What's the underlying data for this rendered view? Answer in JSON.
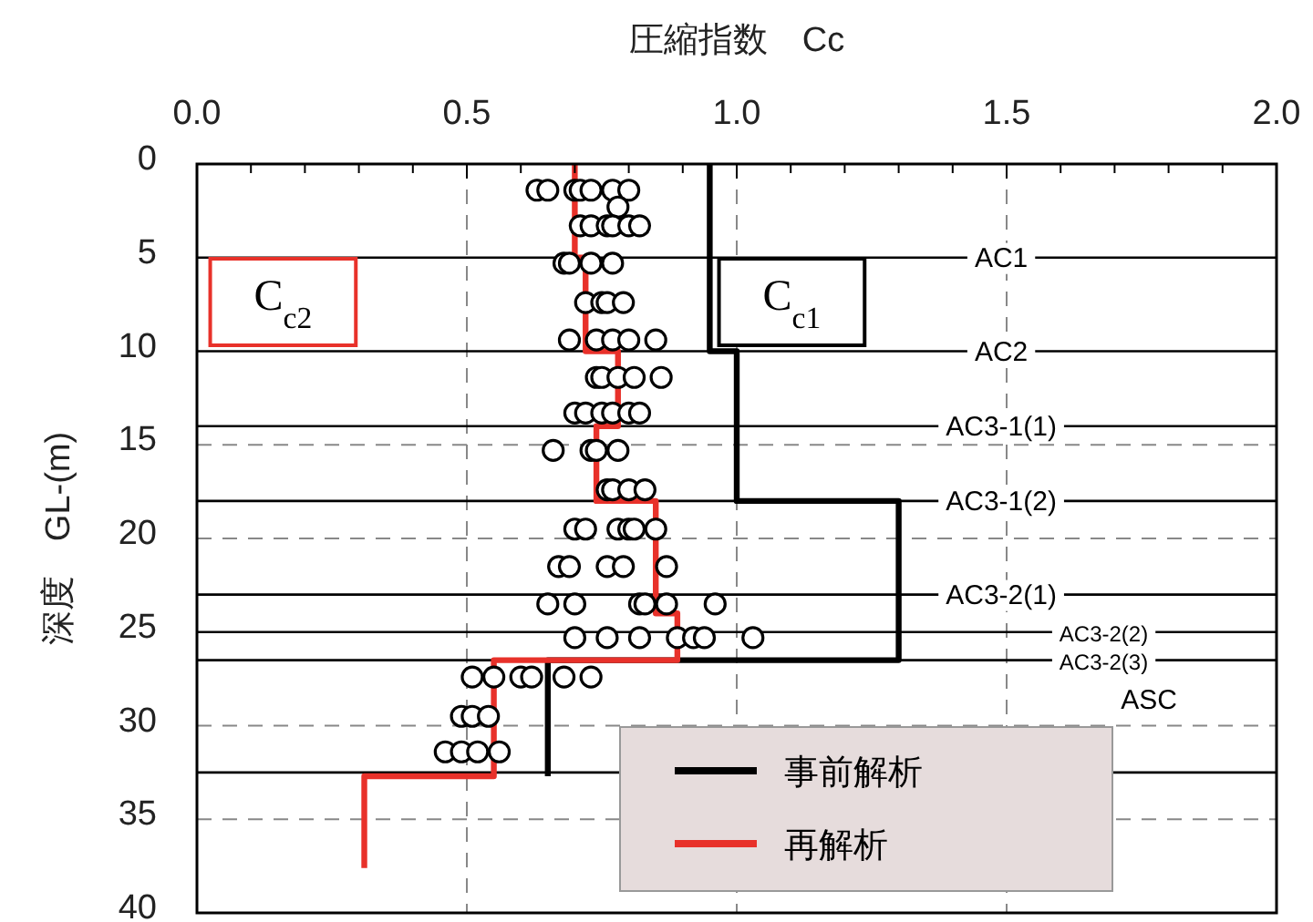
{
  "chart_data": {
    "type": "line",
    "xlabel": "圧縮指数　Cc",
    "ylabel": "深度　GL-(m)",
    "xlim": [
      0,
      2
    ],
    "ylim": [
      40,
      0
    ],
    "xticks": [
      {
        "value": 0,
        "label": "0.0"
      },
      {
        "value": 0.1,
        "label": null
      },
      {
        "value": 0.2,
        "label": null
      },
      {
        "value": 0.3,
        "label": null
      },
      {
        "value": 0.4,
        "label": null
      },
      {
        "value": 0.5,
        "label": "0.5"
      },
      {
        "value": 0.6,
        "label": null
      },
      {
        "value": 0.7,
        "label": null
      },
      {
        "value": 0.8,
        "label": null
      },
      {
        "value": 0.9,
        "label": null
      },
      {
        "value": 1,
        "label": "1.0"
      },
      {
        "value": 1.1,
        "label": null
      },
      {
        "value": 1.2,
        "label": null
      },
      {
        "value": 1.3,
        "label": null
      },
      {
        "value": 1.4,
        "label": null
      },
      {
        "value": 1.5,
        "label": "1.5"
      },
      {
        "value": 1.6,
        "label": null
      },
      {
        "value": 1.7,
        "label": null
      },
      {
        "value": 1.8,
        "label": null
      },
      {
        "value": 1.9,
        "label": null
      },
      {
        "value": 2,
        "label": "2.0"
      }
    ],
    "yticks": [
      0,
      5,
      10,
      15,
      20,
      25,
      30,
      35,
      40
    ],
    "grid": true,
    "legend": "bottom right",
    "series": [
      {
        "name": "事前解析",
        "color": "#000000",
        "x": [
          0.95,
          0.95,
          1.0,
          1.0,
          1.3,
          1.3,
          0.65,
          0.65
        ],
        "values": [
          0,
          10,
          10,
          18,
          18,
          26.5,
          26.5,
          32.7
        ]
      },
      {
        "name": "再解析",
        "color": "#e8312a",
        "x": [
          0.7,
          0.7,
          0.72,
          0.72,
          0.78,
          0.78,
          0.74,
          0.74,
          0.85,
          0.85,
          0.89,
          0.89,
          0.55,
          0.55,
          0.31,
          0.31
        ],
        "values": [
          0,
          5,
          5,
          10,
          10,
          14,
          14,
          18,
          18,
          24,
          24,
          26.5,
          26.5,
          32.7,
          32.7,
          37.6
        ]
      },
      {
        "type": "scatter",
        "color": "#000000",
        "marker": "circle",
        "x": [
          0.63,
          0.65,
          0.7,
          0.71,
          0.73,
          0.77,
          0.8,
          0.78,
          0.71,
          0.73,
          0.76,
          0.77,
          0.8,
          0.82,
          0.68,
          0.69,
          0.73,
          0.77,
          0.72,
          0.75,
          0.76,
          0.79,
          0.69,
          0.74,
          0.77,
          0.8,
          0.85,
          0.74,
          0.75,
          0.78,
          0.81,
          0.86,
          0.7,
          0.72,
          0.75,
          0.77,
          0.8,
          0.82,
          0.66,
          0.73,
          0.74,
          0.78,
          0.76,
          0.77,
          0.8,
          0.83,
          0.7,
          0.72,
          0.78,
          0.8,
          0.81,
          0.85,
          0.67,
          0.69,
          0.76,
          0.79,
          0.87,
          0.65,
          0.7,
          0.82,
          0.83,
          0.87,
          0.96,
          0.7,
          0.76,
          0.82,
          0.89,
          0.92,
          0.94,
          1.03,
          0.51,
          0.55,
          0.6,
          0.62,
          0.68,
          0.73,
          0.49,
          0.51,
          0.54,
          0.46,
          0.49,
          0.52,
          0.56
        ],
        "values": [
          1.4,
          1.4,
          1.4,
          1.4,
          1.4,
          1.4,
          1.4,
          2.3,
          3.3,
          3.3,
          3.3,
          3.3,
          3.3,
          3.3,
          5.3,
          5.3,
          5.3,
          5.3,
          7.4,
          7.4,
          7.4,
          7.4,
          9.4,
          9.4,
          9.4,
          9.4,
          9.4,
          11.4,
          11.4,
          11.4,
          11.4,
          11.4,
          13.3,
          13.3,
          13.3,
          13.3,
          13.3,
          13.3,
          15.3,
          15.3,
          15.3,
          15.3,
          17.4,
          17.4,
          17.4,
          17.4,
          19.5,
          19.5,
          19.5,
          19.5,
          19.5,
          19.5,
          21.5,
          21.5,
          21.5,
          21.5,
          21.5,
          23.5,
          23.5,
          23.5,
          23.5,
          23.5,
          23.5,
          25.3,
          25.3,
          25.3,
          25.3,
          25.3,
          25.3,
          25.3,
          27.4,
          27.4,
          27.4,
          27.4,
          27.4,
          27.4,
          29.5,
          29.5,
          29.5,
          31.4,
          31.4,
          31.4,
          31.4
        ]
      }
    ],
    "ref_lines": [
      {
        "axis": "y",
        "value": 5,
        "label": "AC1"
      },
      {
        "axis": "y",
        "value": 10,
        "label": "AC2"
      },
      {
        "axis": "y",
        "value": 14,
        "label": "AC3-1(1)"
      },
      {
        "axis": "y",
        "value": 18,
        "label": "AC3-1(2)"
      },
      {
        "axis": "y",
        "value": 23,
        "label": "AC3-2(1)"
      },
      {
        "axis": "y",
        "value": 25,
        "label": "AC3-2(2)"
      },
      {
        "axis": "y",
        "value": 26.5,
        "label": "AC3-2(3)"
      },
      {
        "axis": "y",
        "value": 32.5,
        "label": "ASC"
      }
    ],
    "annotations": [
      "C$_{c1}$",
      "C$_{c2}$"
    ]
  }
}
